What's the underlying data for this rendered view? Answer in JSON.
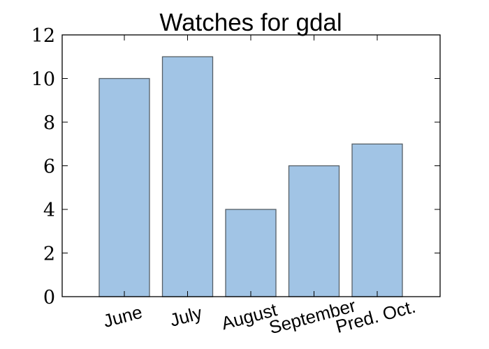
{
  "chart_data": {
    "type": "bar",
    "title": "Watches for gdal",
    "xlabel": "",
    "ylabel": "",
    "categories": [
      "June",
      "July",
      "August",
      "September",
      "Pred. Oct."
    ],
    "values": [
      10,
      11,
      4,
      6,
      7
    ],
    "ylim": [
      0,
      12
    ],
    "yticks": [
      "0",
      "2",
      "4",
      "6",
      "8",
      "10",
      "12"
    ],
    "grid": false,
    "legend": "none",
    "bar_color": "#a1c4e5",
    "bar_edge_color": "#555f66"
  }
}
